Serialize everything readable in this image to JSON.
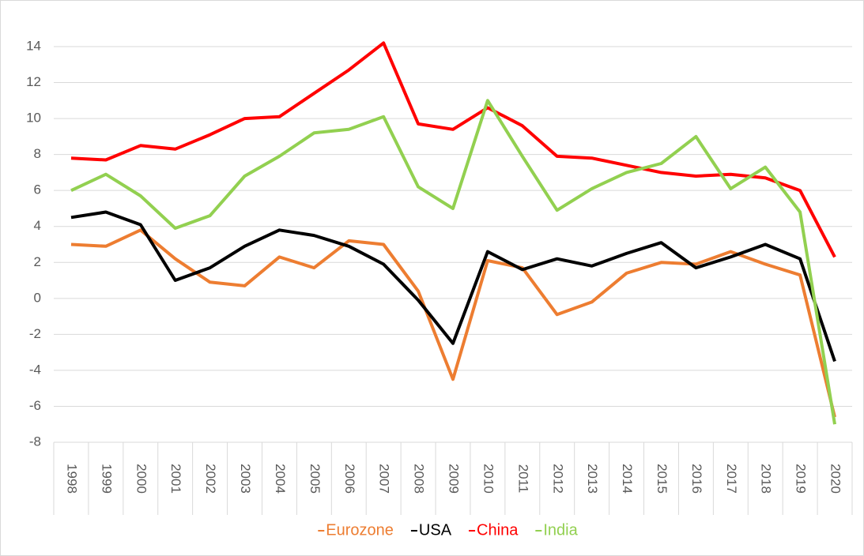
{
  "chart_data": {
    "type": "line",
    "categories": [
      "1998",
      "1999",
      "2000",
      "2001",
      "2002",
      "2003",
      "2004",
      "2005",
      "2006",
      "2007",
      "2008",
      "2009",
      "2010",
      "2011",
      "2012",
      "2013",
      "2014",
      "2015",
      "2016",
      "2017",
      "2018",
      "2019",
      "2020"
    ],
    "series": [
      {
        "name": "Eurozone",
        "color": "#ed7d31",
        "values": [
          3.0,
          2.9,
          3.8,
          2.2,
          0.9,
          0.7,
          2.3,
          1.7,
          3.2,
          3.0,
          0.4,
          -4.5,
          2.1,
          1.7,
          -0.9,
          -0.2,
          1.4,
          2.0,
          1.9,
          2.6,
          1.9,
          1.3,
          -6.6
        ]
      },
      {
        "name": "USA",
        "color": "#000000",
        "values": [
          4.5,
          4.8,
          4.1,
          1.0,
          1.7,
          2.9,
          3.8,
          3.5,
          2.9,
          1.9,
          -0.1,
          -2.5,
          2.6,
          1.6,
          2.2,
          1.8,
          2.5,
          3.1,
          1.7,
          2.3,
          3.0,
          2.2,
          -3.5
        ]
      },
      {
        "name": "China",
        "color": "#ff0000",
        "values": [
          7.8,
          7.7,
          8.5,
          8.3,
          9.1,
          10.0,
          10.1,
          11.4,
          12.7,
          14.2,
          9.7,
          9.4,
          10.6,
          9.6,
          7.9,
          7.8,
          7.4,
          7.0,
          6.8,
          6.9,
          6.7,
          6.0,
          2.3
        ]
      },
      {
        "name": "India",
        "color": "#92d050",
        "values": [
          6.0,
          6.9,
          5.7,
          3.9,
          4.6,
          6.8,
          7.9,
          9.2,
          9.4,
          10.1,
          6.2,
          5.0,
          11.0,
          7.9,
          4.9,
          6.1,
          7.0,
          7.5,
          9.0,
          6.1,
          7.3,
          4.8,
          -7.0
        ]
      }
    ],
    "ylim": [
      -8,
      14
    ],
    "yticks": [
      -8,
      -6,
      -4,
      -2,
      0,
      2,
      4,
      6,
      8,
      10,
      12,
      14
    ],
    "grid": true,
    "legend": "bottom"
  }
}
